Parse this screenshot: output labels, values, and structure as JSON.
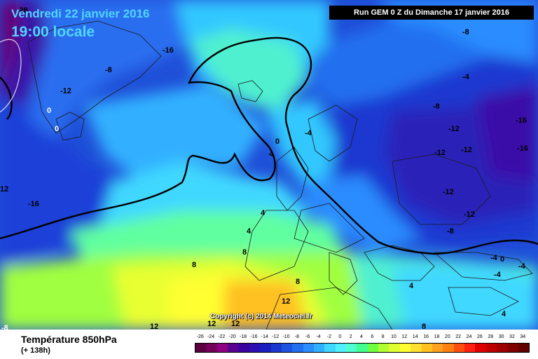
{
  "header": {
    "date": "Vendredi 22 janvier 2016",
    "time": "19:00 locale",
    "run_info": "Run GEM 0 Z du Dimanche 17 janvier 2016"
  },
  "copyright": "Copyright (c) 2014 Meteociel.fr",
  "footer": {
    "variable": "Température 850hPa",
    "forecast_offset": "(+ 138h)"
  },
  "legend": {
    "values": [
      "-26",
      "-24",
      "-22",
      "-20",
      "-18",
      "-16",
      "-14",
      "-12",
      "-10",
      "-8",
      "-6",
      "-4",
      "-2",
      "0",
      "2",
      "4",
      "6",
      "8",
      "10",
      "12",
      "14",
      "16",
      "18",
      "20",
      "22",
      "24",
      "26",
      "28",
      "30",
      "32",
      "34"
    ],
    "colors": [
      "#5a0040",
      "#75005a",
      "#8e0080",
      "#5a0090",
      "#3a00a0",
      "#2a10b0",
      "#1a20c0",
      "#1a38d0",
      "#1a54e0",
      "#2070f0",
      "#2a8cff",
      "#30b0ff",
      "#40d8ff",
      "#50f0ff",
      "#50ffd0",
      "#40ff90",
      "#70ff40",
      "#b0ff30",
      "#e0ff30",
      "#ffff30",
      "#ffe030",
      "#ffc020",
      "#ffa020",
      "#ff8010",
      "#ff5010",
      "#ff2010",
      "#e00000",
      "#c00000",
      "#a00000",
      "#800000",
      "#600000"
    ]
  },
  "map_labels": [
    {
      "text": "-28",
      "color": "#ffffff"
    },
    {
      "text": "-16",
      "color": "#000000"
    },
    {
      "text": "-8",
      "color": "#000000"
    },
    {
      "text": "-12",
      "color": "#000000"
    },
    {
      "text": "0",
      "color": "#ffffff"
    },
    {
      "text": "0",
      "color": "#ffffff"
    },
    {
      "text": "12",
      "color": "#000000"
    },
    {
      "text": "-16",
      "color": "#000000"
    },
    {
      "text": "0",
      "color": "#000000"
    },
    {
      "text": "4",
      "color": "#000000"
    },
    {
      "text": "-4",
      "color": "#000000"
    },
    {
      "text": "-8",
      "color": "#000000"
    },
    {
      "text": "-4",
      "color": "#000000"
    },
    {
      "text": "-8",
      "color": "#000000"
    },
    {
      "text": "-12",
      "color": "#000000"
    },
    {
      "text": "-16",
      "color": "#000000"
    },
    {
      "text": "-12",
      "color": "#000000"
    },
    {
      "text": "-12",
      "color": "#000000"
    },
    {
      "text": "-16",
      "color": "#000000"
    },
    {
      "text": "-12",
      "color": "#000000"
    },
    {
      "text": "-12",
      "color": "#000000"
    },
    {
      "text": "-8",
      "color": "#000000"
    },
    {
      "text": "4",
      "color": "#000000"
    },
    {
      "text": "4",
      "color": "#000000"
    },
    {
      "text": "8",
      "color": "#000000"
    },
    {
      "text": "8",
      "color": "#000000"
    },
    {
      "text": "8",
      "color": "#000000"
    },
    {
      "text": "12",
      "color": "#000000"
    },
    {
      "text": "4",
      "color": "#000000"
    },
    {
      "text": "-4",
      "color": "#000000"
    },
    {
      "text": "-4",
      "color": "#000000"
    },
    {
      "text": "0",
      "color": "#000000"
    },
    {
      "text": "-4",
      "color": "#000000"
    },
    {
      "text": "4",
      "color": "#000000"
    },
    {
      "text": "12",
      "color": "#000000"
    },
    {
      "text": "12",
      "color": "#000000"
    },
    {
      "text": "12",
      "color": "#000000"
    },
    {
      "text": "8",
      "color": "#000000"
    },
    {
      "text": "-8",
      "color": "#ffffff"
    }
  ]
}
